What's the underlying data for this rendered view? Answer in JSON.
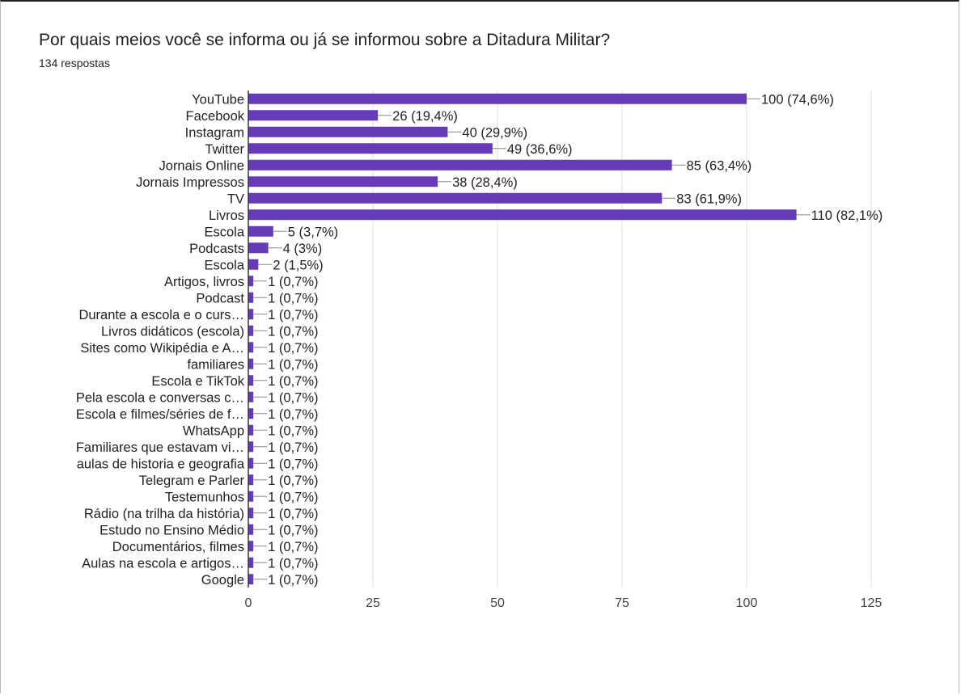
{
  "header": {
    "title": "Por quais meios você se informa ou já se informou sobre a Ditadura Militar?",
    "responses": "134 respostas"
  },
  "colors": {
    "bar": "#673ab7",
    "grid": "#e0e0e0",
    "axis": "#333333"
  },
  "chart_data": {
    "type": "bar",
    "orientation": "horizontal",
    "xlim": [
      0,
      125
    ],
    "xticks": [
      0,
      25,
      50,
      75,
      100,
      125
    ],
    "grid": true,
    "categories": [
      "YouTube",
      "Facebook",
      "Instagram",
      "Twitter",
      "Jornais Online",
      "Jornais Impressos",
      "TV",
      "Livros",
      "Escola",
      "Podcasts",
      "Escola",
      "Artigos, livros",
      "Podcast",
      "Durante a escola e o curs…",
      "Livros didáticos (escola)",
      "Sites como Wikipédia e A…",
      "familiares",
      "Escola e TikTok",
      "Pela escola e conversas c…",
      "Escola e filmes/séries de f…",
      "WhatsApp",
      "Familiares que estavam vi…",
      "aulas de historia e geografia",
      "Telegram e Parler",
      "Testemunhos",
      "Rádio (na trilha da história)",
      "Estudo no Ensino Médio",
      "Documentários, filmes",
      "Aulas na escola e artigos…",
      "Google"
    ],
    "values": [
      100,
      26,
      40,
      49,
      85,
      38,
      83,
      110,
      5,
      4,
      2,
      1,
      1,
      1,
      1,
      1,
      1,
      1,
      1,
      1,
      1,
      1,
      1,
      1,
      1,
      1,
      1,
      1,
      1,
      1
    ],
    "labels": [
      "100 (74,6%)",
      "26 (19,4%)",
      "40 (29,9%)",
      "49 (36,6%)",
      "85 (63,4%)",
      "38 (28,4%)",
      "83 (61,9%)",
      "110 (82,1%)",
      "5 (3,7%)",
      "4 (3%)",
      "2 (1,5%)",
      "1 (0,7%)",
      "1 (0,7%)",
      "1 (0,7%)",
      "1 (0,7%)",
      "1 (0,7%)",
      "1 (0,7%)",
      "1 (0,7%)",
      "1 (0,7%)",
      "1 (0,7%)",
      "1 (0,7%)",
      "1 (0,7%)",
      "1 (0,7%)",
      "1 (0,7%)",
      "1 (0,7%)",
      "1 (0,7%)",
      "1 (0,7%)",
      "1 (0,7%)",
      "1 (0,7%)",
      "1 (0,7%)"
    ]
  }
}
